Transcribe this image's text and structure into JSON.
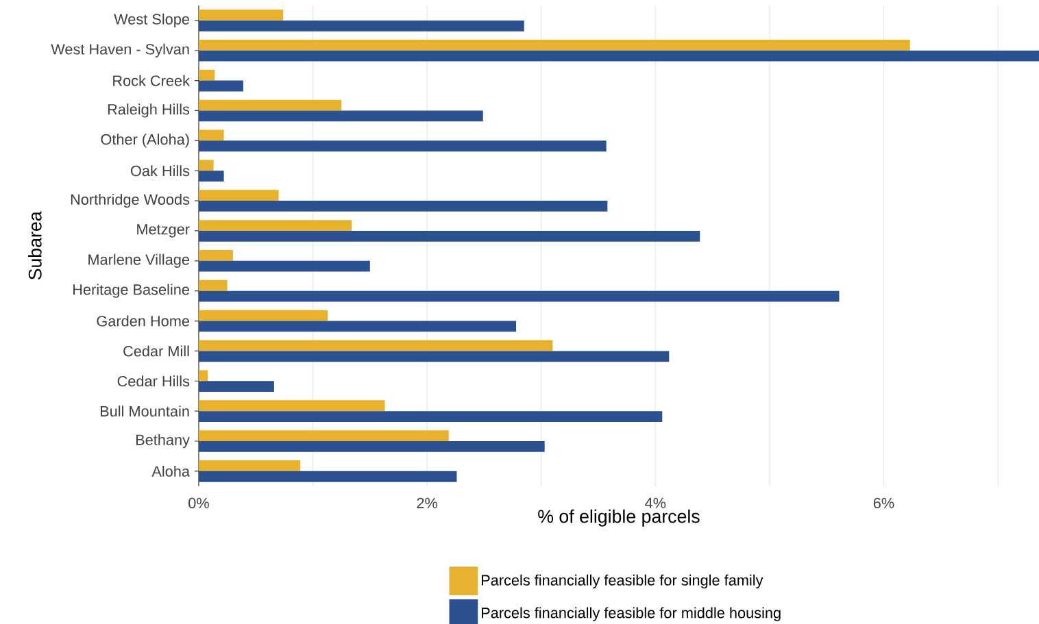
{
  "chart_data": {
    "type": "bar",
    "orientation": "horizontal",
    "xlabel": "% of eligible parcels",
    "ylabel": "Subarea",
    "categories": [
      "West Slope",
      "West Haven - Sylvan",
      "Rock Creek",
      "Raleigh Hills",
      "Other (Aloha)",
      "Oak Hills",
      "Northridge Woods",
      "Metzger",
      "Marlene Village",
      "Heritage Baseline",
      "Garden Home",
      "Cedar Mill",
      "Cedar Hills",
      "Bull Mountain",
      "Bethany",
      "Aloha"
    ],
    "series": [
      {
        "name": "Parcels financially feasible for single family",
        "color": "#e8b22f",
        "values": [
          0.74,
          6.23,
          0.14,
          1.25,
          0.22,
          0.13,
          0.7,
          1.34,
          0.3,
          0.25,
          1.13,
          3.1,
          0.08,
          1.63,
          2.19,
          0.89
        ]
      },
      {
        "name": "Parcels financially feasible for middle housing",
        "color": "#2c5191",
        "values": [
          2.85,
          7.36,
          0.39,
          2.49,
          3.57,
          0.22,
          3.58,
          4.39,
          1.5,
          5.61,
          2.78,
          4.12,
          0.66,
          4.06,
          3.03,
          2.26
        ]
      }
    ],
    "xlim": [
      0,
      7.36
    ],
    "xticks": [
      {
        "value": 0,
        "label": "0%"
      },
      {
        "value": 1,
        "label": null
      },
      {
        "value": 2,
        "label": "2%"
      },
      {
        "value": 3,
        "label": null
      },
      {
        "value": 4,
        "label": "4%"
      },
      {
        "value": 5,
        "label": null
      },
      {
        "value": 6,
        "label": "6%"
      },
      {
        "value": 7,
        "label": null
      }
    ],
    "grid": "x",
    "legend": "bottom"
  }
}
